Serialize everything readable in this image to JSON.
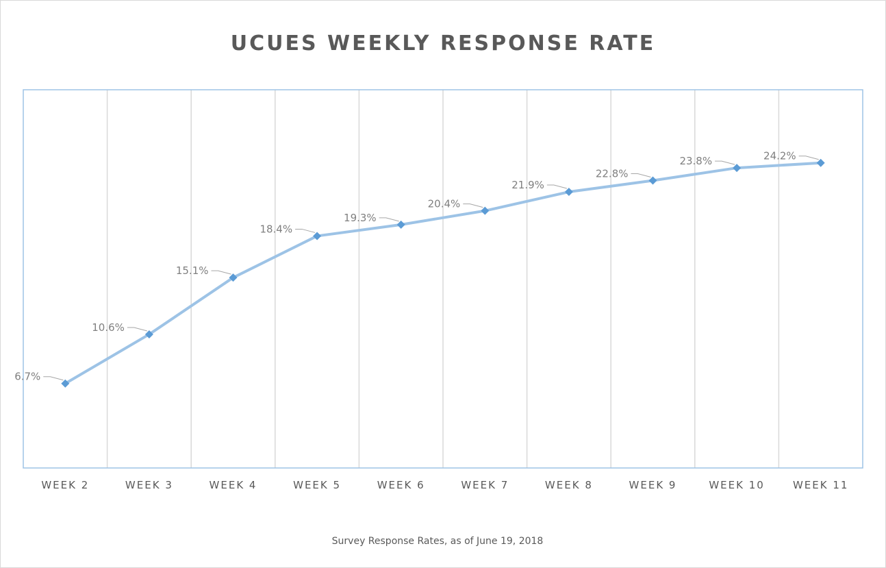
{
  "chart_data": {
    "type": "line",
    "title": "UCUES WEEKLY RESPONSE RATE",
    "caption": "Survey Response Rates, as of June 19, 2018",
    "categories": [
      "WEEK 2",
      "WEEK 3",
      "WEEK 4",
      "WEEK 5",
      "WEEK 6",
      "WEEK 7",
      "WEEK 8",
      "WEEK 9",
      "WEEK 10",
      "WEEK 11"
    ],
    "series": [
      {
        "values": [
          6.7,
          10.6,
          15.1,
          18.4,
          19.3,
          20.4,
          21.9,
          22.8,
          23.8,
          24.2
        ],
        "labels": [
          "6.7%",
          "10.6%",
          "15.1%",
          "18.4%",
          "19.3%",
          "20.4%",
          "21.9%",
          "22.8%",
          "23.8%",
          "24.2%"
        ]
      }
    ],
    "ylim": [
      0,
      30
    ],
    "grid": "vertical",
    "colors": {
      "line": "#9dc3e6",
      "marker": "#5b9bd5",
      "plot_border": "#9dc3e6",
      "gridline": "#d9d9d9"
    }
  }
}
